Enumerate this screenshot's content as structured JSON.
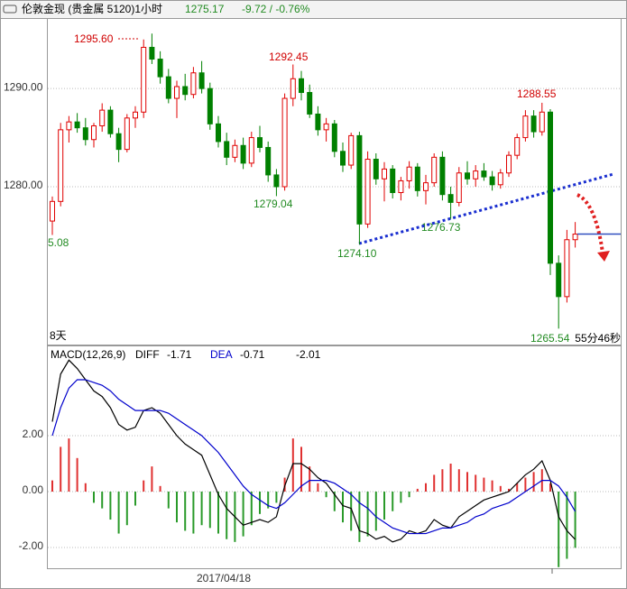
{
  "header": {
    "title": "伦敦金现 (贵金属 5120)1小时",
    "last_price": 1275.17,
    "change": "-9.72 / -0.76%",
    "left_timer": "8天",
    "right_timer": "55分46秒"
  },
  "chart_data": [
    {
      "type": "candlestick",
      "up_color": "#e00000",
      "down_color": "#008000",
      "line_color": "#3050c0",
      "ylim": [
        1264.1,
        1297.0
      ],
      "yticks": [
        {
          "value": 1290,
          "label": "1290.00"
        },
        {
          "value": 1280,
          "label": "1280.00"
        }
      ],
      "grid": true,
      "annotations": [
        "1295.60",
        "1292.45",
        "1288.55",
        "1279.04",
        "1276.73",
        "1274.10",
        "1265.54",
        "5.08"
      ],
      "x_label": "2017/04/18",
      "values": [
        [
          1276.5,
          1279,
          1275.08,
          1278.5
        ],
        [
          1278.5,
          1286.5,
          1278,
          1285.8
        ],
        [
          1285.8,
          1287.2,
          1284.5,
          1286.6
        ],
        [
          1286.6,
          1287.5,
          1285.5,
          1286.0
        ],
        [
          1286.0,
          1287,
          1284.2,
          1284.8
        ],
        [
          1284.8,
          1286.5,
          1284,
          1286.2
        ],
        [
          1286.2,
          1288.5,
          1285.6,
          1287.8
        ],
        [
          1287.8,
          1288.2,
          1285,
          1285.4
        ],
        [
          1285.4,
          1286,
          1282.5,
          1283.8
        ],
        [
          1283.8,
          1287.4,
          1283.5,
          1287.0
        ],
        [
          1287.0,
          1288.2,
          1286,
          1287.6
        ],
        [
          1287.6,
          1295.0,
          1287,
          1294.2
        ],
        [
          1294.2,
          1295.6,
          1292.5,
          1293.0
        ],
        [
          1293.0,
          1293.8,
          1290.5,
          1291.2
        ],
        [
          1291.2,
          1292,
          1288.5,
          1289.0
        ],
        [
          1289.0,
          1290.8,
          1287,
          1290.2
        ],
        [
          1290.2,
          1291.5,
          1288.8,
          1289.4
        ],
        [
          1289.4,
          1292.2,
          1289,
          1291.6
        ],
        [
          1291.6,
          1292.8,
          1289.5,
          1290.0
        ],
        [
          1290.0,
          1290.6,
          1285.8,
          1286.4
        ],
        [
          1286.4,
          1287.2,
          1284,
          1284.6
        ],
        [
          1284.6,
          1285.5,
          1282.2,
          1283.0
        ],
        [
          1283.0,
          1284.8,
          1282.5,
          1284.2
        ],
        [
          1284.2,
          1285,
          1281.8,
          1282.4
        ],
        [
          1282.4,
          1285.6,
          1282,
          1285.0
        ],
        [
          1285.0,
          1286.2,
          1283.5,
          1284.0
        ],
        [
          1284.0,
          1284.6,
          1280.5,
          1281.2
        ],
        [
          1281.2,
          1281.8,
          1279.04,
          1280.0
        ],
        [
          1280.0,
          1289.5,
          1279.6,
          1289.0
        ],
        [
          1289.0,
          1292.45,
          1288.2,
          1291.0
        ],
        [
          1291.0,
          1291.8,
          1288.8,
          1289.6
        ],
        [
          1289.6,
          1290.4,
          1287,
          1287.4
        ],
        [
          1287.4,
          1288.2,
          1285.2,
          1285.8
        ],
        [
          1285.8,
          1287,
          1284.6,
          1286.4
        ],
        [
          1286.4,
          1286.8,
          1283,
          1283.6
        ],
        [
          1283.6,
          1284.5,
          1281.5,
          1282.2
        ],
        [
          1282.2,
          1285.5,
          1281.8,
          1285.2
        ],
        [
          1285.2,
          1285.6,
          1274.1,
          1276.2
        ],
        [
          1276.2,
          1283.6,
          1275.8,
          1282.8
        ],
        [
          1282.8,
          1283.4,
          1280.2,
          1280.8
        ],
        [
          1280.8,
          1282.5,
          1278.5,
          1281.8
        ],
        [
          1281.8,
          1282.2,
          1278.8,
          1279.4
        ],
        [
          1279.4,
          1281,
          1278.6,
          1280.6
        ],
        [
          1280.6,
          1282.6,
          1279.8,
          1282.0
        ],
        [
          1282.0,
          1282.4,
          1279,
          1279.6
        ],
        [
          1279.6,
          1281.2,
          1278.2,
          1280.4
        ],
        [
          1280.4,
          1283.4,
          1280,
          1283.0
        ],
        [
          1283.0,
          1283.6,
          1278.6,
          1279.2
        ],
        [
          1279.2,
          1280,
          1276.73,
          1278.4
        ],
        [
          1278.4,
          1282,
          1278,
          1281.4
        ],
        [
          1281.4,
          1282.6,
          1280.2,
          1280.8
        ],
        [
          1280.8,
          1282.2,
          1280,
          1281.6
        ],
        [
          1281.6,
          1282.4,
          1280.6,
          1281.0
        ],
        [
          1281.0,
          1281.6,
          1279.6,
          1280.2
        ],
        [
          1280.2,
          1281.8,
          1279.8,
          1281.4
        ],
        [
          1281.4,
          1283.6,
          1281,
          1283.2
        ],
        [
          1283.2,
          1285.4,
          1282.8,
          1285.0
        ],
        [
          1285.0,
          1287.8,
          1284.6,
          1287.2
        ],
        [
          1287.2,
          1287.8,
          1285,
          1285.6
        ],
        [
          1285.6,
          1288.55,
          1285.2,
          1287.6
        ],
        [
          1287.6,
          1287.9,
          1271.0,
          1272.2
        ],
        [
          1272.2,
          1273,
          1265.54,
          1268.8
        ],
        [
          1268.8,
          1275.6,
          1268.2,
          1274.6
        ],
        [
          1274.6,
          1276.4,
          1273.8,
          1275.17
        ]
      ]
    },
    {
      "type": "macd",
      "label": "MACD(12,26,9)",
      "readout": [
        -1.71,
        -0.71,
        -2.01
      ],
      "ylim": [
        -2.74,
        5.16
      ],
      "yticks": [
        {
          "value": 2,
          "label": "2.00"
        },
        {
          "value": 0,
          "label": "0.00"
        },
        {
          "value": -2,
          "label": "-2.00"
        }
      ],
      "hist_up_color": "#e03030",
      "hist_down_color": "#2a9a2a",
      "series": [
        {
          "name": "DIFF",
          "color": "#000000",
          "values": [
            2.5,
            4.2,
            4.7,
            4.4,
            4.0,
            3.6,
            3.4,
            3.0,
            2.4,
            2.2,
            2.3,
            2.9,
            3.0,
            2.8,
            2.4,
            2.0,
            1.7,
            1.5,
            1.3,
            0.6,
            -0.1,
            -0.6,
            -0.9,
            -1.2,
            -1.1,
            -1.0,
            -1.1,
            -0.9,
            0.2,
            1.0,
            1.0,
            0.8,
            0.5,
            0.3,
            -0.1,
            -0.5,
            -0.6,
            -1.4,
            -1.5,
            -1.7,
            -1.6,
            -1.8,
            -1.7,
            -1.4,
            -1.5,
            -1.4,
            -1.0,
            -1.2,
            -1.3,
            -0.9,
            -0.7,
            -0.5,
            -0.3,
            -0.2,
            -0.1,
            0.0,
            0.3,
            0.6,
            0.8,
            1.1,
            0.4,
            -0.9,
            -1.4,
            -1.71
          ]
        },
        {
          "name": "DEA",
          "color": "#0000cc",
          "values": [
            2.0,
            3.0,
            3.7,
            4.0,
            4.0,
            3.9,
            3.8,
            3.6,
            3.3,
            3.1,
            2.9,
            2.9,
            2.9,
            2.9,
            2.8,
            2.6,
            2.4,
            2.2,
            2.0,
            1.7,
            1.4,
            1.0,
            0.6,
            0.2,
            -0.1,
            -0.3,
            -0.5,
            -0.6,
            -0.4,
            -0.1,
            0.2,
            0.4,
            0.4,
            0.4,
            0.3,
            0.1,
            -0.1,
            -0.4,
            -0.6,
            -0.9,
            -1.1,
            -1.3,
            -1.4,
            -1.5,
            -1.5,
            -1.5,
            -1.4,
            -1.3,
            -1.3,
            -1.2,
            -1.1,
            -0.9,
            -0.8,
            -0.6,
            -0.5,
            -0.4,
            -0.2,
            0.0,
            0.2,
            0.4,
            0.4,
            0.2,
            -0.2,
            -0.71
          ]
        }
      ],
      "histogram": [
        0.4,
        1.6,
        1.9,
        1.2,
        0.3,
        -0.4,
        -0.6,
        -1.0,
        -1.5,
        -1.2,
        -0.5,
        0.4,
        0.9,
        0.2,
        -0.6,
        -1.1,
        -1.4,
        -1.5,
        -1.2,
        -1.3,
        -1.5,
        -1.7,
        -1.8,
        -1.6,
        -1.2,
        -0.8,
        -0.6,
        -0.4,
        0.5,
        1.9,
        1.6,
        0.9,
        0.3,
        -0.2,
        -0.7,
        -1.1,
        -1.4,
        -1.8,
        -1.6,
        -1.4,
        -1.0,
        -0.7,
        -0.4,
        -0.2,
        0.1,
        0.3,
        0.6,
        0.8,
        1.0,
        0.8,
        0.7,
        0.6,
        0.5,
        0.4,
        0.2,
        0.1,
        0.3,
        0.5,
        0.7,
        0.8,
        0.3,
        -2.7,
        -2.4,
        -2.01
      ]
    }
  ]
}
